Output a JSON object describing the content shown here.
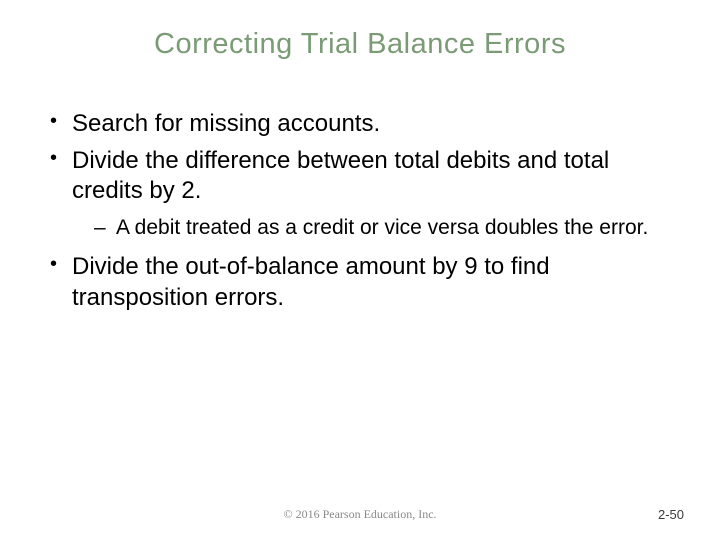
{
  "slide": {
    "title": "Correcting Trial Balance Errors",
    "title_color": "#7a9b76",
    "title_fontsize": 29,
    "body_fontsize_l1": 24,
    "body_fontsize_l2": 21,
    "text_color": "#000000",
    "background_color": "#ffffff",
    "bullets": [
      {
        "text": "Search for missing accounts."
      },
      {
        "text": "Divide the difference between total debits and total credits by 2.",
        "sub": [
          {
            "text": "A debit treated as a credit or vice versa doubles the error."
          }
        ]
      },
      {
        "text": "Divide the out-of-balance amount by 9 to find transposition errors."
      }
    ],
    "footer_center": "© 2016 Pearson Education, Inc.",
    "footer_right": "2-50",
    "footer_color": "#8a8a8a"
  }
}
